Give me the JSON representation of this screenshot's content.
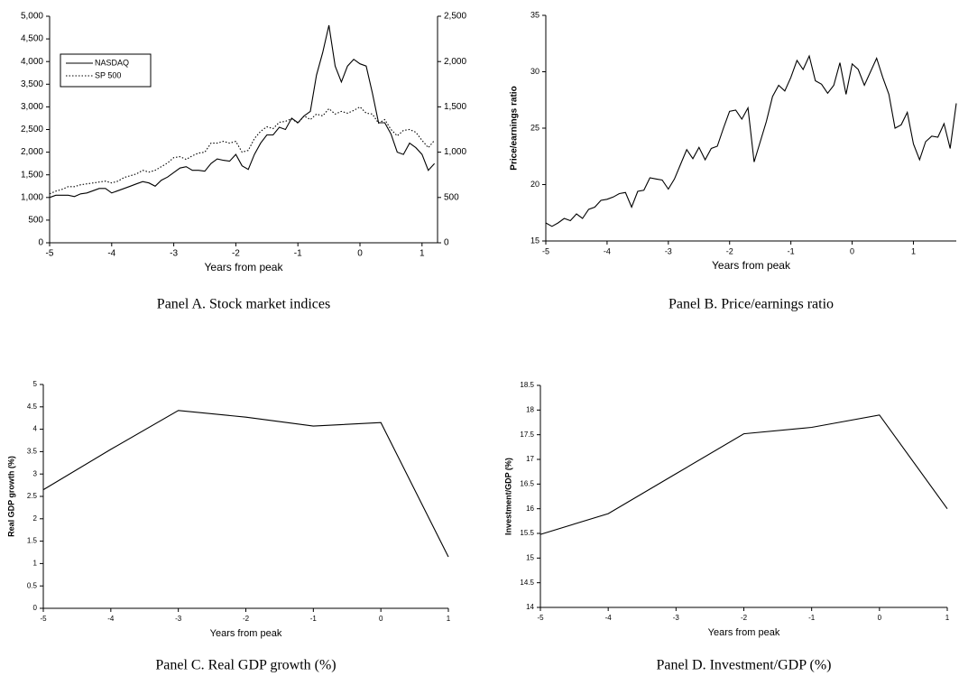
{
  "chart_data": [
    {
      "type": "line",
      "caption": "Panel A.  Stock market indices",
      "xlabel": "Years from peak",
      "legend": "upper left",
      "xlim": [
        -5,
        1.25
      ],
      "xticks": [
        -5,
        -4,
        -3,
        -2,
        -1,
        0,
        1
      ],
      "ylim": [
        0,
        5000
      ],
      "yticks": [
        0,
        500,
        {
          "value": 1000,
          "label": "1,000"
        },
        {
          "value": 1500,
          "label": "1,500"
        },
        {
          "value": 2000,
          "label": "2,000"
        },
        {
          "value": 2500,
          "label": "2,500"
        },
        {
          "value": 3000,
          "label": "3,000"
        },
        {
          "value": 3500,
          "label": "3,500"
        },
        {
          "value": 4000,
          "label": "4,000"
        },
        {
          "value": 4500,
          "label": "4,500"
        },
        {
          "value": 5000,
          "label": "5,000"
        }
      ],
      "y2lim": [
        0,
        2500
      ],
      "y2ticks": [
        0,
        500,
        {
          "value": 1000,
          "label": "1,000"
        },
        {
          "value": 1500,
          "label": "1,500"
        },
        {
          "value": 2000,
          "label": "2,000"
        },
        {
          "value": 2500,
          "label": "2,500"
        }
      ],
      "x": [
        -5,
        -4.9,
        -4.8,
        -4.7,
        -4.6,
        -4.5,
        -4.4,
        -4.3,
        -4.2,
        -4.1,
        -4,
        -3.9,
        -3.8,
        -3.7,
        -3.6,
        -3.5,
        -3.4,
        -3.3,
        -3.2,
        -3.1,
        -3,
        -2.9,
        -2.8,
        -2.7,
        -2.6,
        -2.5,
        -2.4,
        -2.3,
        -2.2,
        -2.1,
        -2,
        -1.9,
        -1.8,
        -1.7,
        -1.6,
        -1.5,
        -1.4,
        -1.3,
        -1.2,
        -1.1,
        -1,
        -0.9,
        -0.8,
        -0.7,
        -0.6,
        -0.5,
        -0.4,
        -0.3,
        -0.2,
        -0.1,
        0,
        0.1,
        0.2,
        0.3,
        0.4,
        0.5,
        0.6,
        0.7,
        0.8,
        0.9,
        1,
        1.1,
        1.2
      ],
      "series": [
        {
          "name": "NASDAQ",
          "color": "#000000",
          "dash": "solid",
          "axis": "y",
          "values": [
            1000,
            1050,
            1050,
            1050,
            1020,
            1080,
            1100,
            1150,
            1200,
            1200,
            1100,
            1150,
            1200,
            1250,
            1300,
            1350,
            1320,
            1250,
            1380,
            1450,
            1550,
            1650,
            1680,
            1600,
            1600,
            1580,
            1750,
            1850,
            1820,
            1800,
            1950,
            1700,
            1620,
            1950,
            2200,
            2380,
            2380,
            2550,
            2500,
            2750,
            2650,
            2800,
            2900,
            3700,
            4200,
            4800,
            3900,
            3550,
            3900,
            4050,
            3950,
            3900,
            3300,
            2650,
            2650,
            2400,
            2000,
            1950,
            2200,
            2100,
            1950,
            1600,
            1750
          ]
        },
        {
          "name": "SP 500",
          "color": "#000000",
          "dash": "dotted",
          "axis": "y2",
          "values": [
            540,
            570,
            590,
            620,
            620,
            640,
            650,
            660,
            670,
            680,
            660,
            680,
            720,
            740,
            760,
            800,
            780,
            800,
            840,
            880,
            940,
            950,
            920,
            960,
            990,
            1000,
            1100,
            1100,
            1120,
            1100,
            1120,
            1000,
            1020,
            1150,
            1230,
            1280,
            1260,
            1330,
            1340,
            1370,
            1320,
            1400,
            1360,
            1420,
            1400,
            1480,
            1420,
            1450,
            1430,
            1460,
            1500,
            1430,
            1420,
            1320,
            1360,
            1250,
            1180,
            1240,
            1250,
            1220,
            1130,
            1050,
            1130
          ]
        }
      ]
    },
    {
      "type": "line",
      "caption": "Panel B.  Price/earnings ratio",
      "xlabel": "Years from peak",
      "ylabel": "Price/earnings ratio",
      "color": "#000000",
      "xlim": [
        -5,
        1.7
      ],
      "xticks": [
        -5,
        -4,
        -3,
        -2,
        -1,
        0,
        1
      ],
      "ylim": [
        15,
        35
      ],
      "yticks": [
        15,
        20,
        25,
        30,
        35
      ],
      "x": [
        -5,
        -4.9,
        -4.8,
        -4.7,
        -4.6,
        -4.5,
        -4.4,
        -4.3,
        -4.2,
        -4.1,
        -4,
        -3.9,
        -3.8,
        -3.7,
        -3.6,
        -3.5,
        -3.4,
        -3.3,
        -3.2,
        -3.1,
        -3,
        -2.9,
        -2.8,
        -2.7,
        -2.6,
        -2.5,
        -2.4,
        -2.3,
        -2.2,
        -2.1,
        -2,
        -1.9,
        -1.8,
        -1.7,
        -1.6,
        -1.5,
        -1.4,
        -1.3,
        -1.2,
        -1.1,
        -1,
        -0.9,
        -0.8,
        -0.7,
        -0.6,
        -0.5,
        -0.4,
        -0.3,
        -0.2,
        -0.1,
        0,
        0.1,
        0.2,
        0.3,
        0.4,
        0.5,
        0.6,
        0.7,
        0.8,
        0.9,
        1,
        1.1,
        1.2,
        1.3,
        1.4,
        1.5,
        1.6,
        1.7
      ],
      "values": [
        16.6,
        16.3,
        16.6,
        17.0,
        16.8,
        17.4,
        17.0,
        17.8,
        18.0,
        18.6,
        18.7,
        18.9,
        19.2,
        19.3,
        18.0,
        19.4,
        19.5,
        20.6,
        20.5,
        20.4,
        19.6,
        20.5,
        21.8,
        23.1,
        22.3,
        23.3,
        22.2,
        23.2,
        23.4,
        25.0,
        26.5,
        26.6,
        25.8,
        26.8,
        22.0,
        23.8,
        25.6,
        27.8,
        28.8,
        28.3,
        29.5,
        31.0,
        30.2,
        31.4,
        29.2,
        28.9,
        28.1,
        28.8,
        30.8,
        28.0,
        30.7,
        30.2,
        28.8,
        30.0,
        31.2,
        29.5,
        28.0,
        25.0,
        25.3,
        26.4,
        23.6,
        22.2,
        23.8,
        24.3,
        24.2,
        25.4,
        23.2,
        27.2
      ]
    },
    {
      "type": "line",
      "caption": "Panel C.  Real GDP growth (%)",
      "xlabel": "Years from peak",
      "ylabel": "Real GDP growth (%)",
      "color": "#000000",
      "xlim": [
        -5,
        1
      ],
      "xticks": [
        -5,
        -4,
        -3,
        -2,
        -1,
        0,
        1
      ],
      "ylim": [
        0,
        5
      ],
      "yticks": [
        0,
        0.5,
        1,
        1.5,
        2,
        2.5,
        3,
        3.5,
        4,
        4.5,
        5
      ],
      "x": [
        -5,
        -4,
        -3,
        -2,
        -1,
        0,
        1
      ],
      "values": [
        2.65,
        3.55,
        4.42,
        4.27,
        4.07,
        4.15,
        1.15
      ]
    },
    {
      "type": "line",
      "caption": "Panel D.  Investment/GDP (%)",
      "xlabel": "Years from peak",
      "ylabel": "Investment/GDP (%)",
      "color": "#000000",
      "xlim": [
        -5,
        1
      ],
      "xticks": [
        -5,
        -4,
        -3,
        -2,
        -1,
        0,
        1
      ],
      "ylim": [
        14,
        18.5
      ],
      "yticks": [
        14,
        14.5,
        15,
        15.5,
        16,
        16.5,
        17,
        17.5,
        18,
        18.5
      ],
      "x": [
        -5,
        -4,
        -3,
        -2,
        -1,
        0,
        1
      ],
      "values": [
        15.48,
        15.9,
        16.71,
        17.52,
        17.65,
        17.9,
        16.0
      ]
    }
  ]
}
